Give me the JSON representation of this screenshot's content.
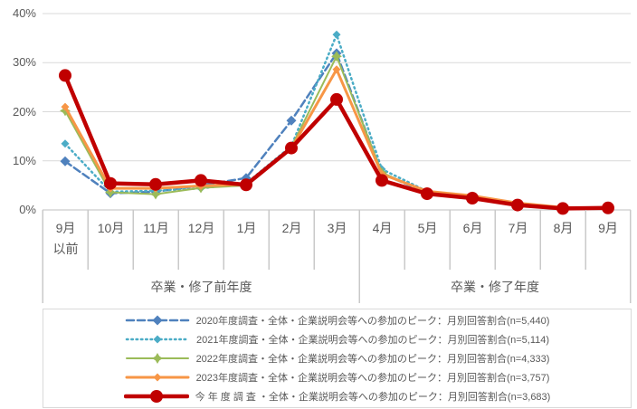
{
  "chart_data": {
    "type": "line",
    "title": "",
    "categories": [
      "9月|以前",
      "10月",
      "11月",
      "12月",
      "1月",
      "2月",
      "3月",
      "4月",
      "5月",
      "6月",
      "7月",
      "8月",
      "9月"
    ],
    "x_group_labels": [
      {
        "label": "卒業・修了前年度",
        "span": 7
      },
      {
        "label": "卒業・修了年度",
        "span": 6
      }
    ],
    "ylabel": "",
    "xlabel": "",
    "ylim": [
      0,
      40
    ],
    "y_ticks": [
      "0%",
      "10%",
      "20%",
      "30%",
      "40%"
    ],
    "grid": "horizontal",
    "legend_position": "bottom",
    "series": [
      {
        "id": "2020",
        "name": "2020年度調査・全体・企業説明会等への参加のピーク：月別回答割合(n=5,440)",
        "n": "5,440",
        "color": "#4F81BD",
        "line_style": "dashed",
        "marker": "diamond",
        "stroke_width": 2.5,
        "marker_size": 5.5,
        "values": [
          9.9,
          3.4,
          3.7,
          5.0,
          6.5,
          18.2,
          31.9,
          7.4,
          3.5,
          2.5,
          1.0,
          0.3,
          0.3
        ]
      },
      {
        "id": "2021",
        "name": "2021年度調査・全体・企業説明会等への参加のピーク：月別回答割合(n=5,114)",
        "n": "5,114",
        "color": "#4BACC6",
        "line_style": "dotted",
        "marker": "diamond",
        "stroke_width": 2.5,
        "marker_size": 4.5,
        "values": [
          13.5,
          3.7,
          3.9,
          4.4,
          5.4,
          13.0,
          35.7,
          8.3,
          3.8,
          2.8,
          1.2,
          0.4,
          0.3
        ]
      },
      {
        "id": "2022",
        "name": "2022年度調査・全体・企業説明会等への参加のピーク：月別回答割合(n=4,333)",
        "n": "4,333",
        "color": "#9BBB59",
        "line_style": "solid",
        "marker": "star4",
        "stroke_width": 2,
        "marker_size": 5,
        "values": [
          20.2,
          3.6,
          3.2,
          4.5,
          5.0,
          12.8,
          31.3,
          7.6,
          3.6,
          2.7,
          1.2,
          0.4,
          0.3
        ]
      },
      {
        "id": "2023",
        "name": "2023年度調査・全体・企業説明会等への参加のピーク：月別回答割合(n=3,757)",
        "n": "3,757",
        "color": "#F79646",
        "line_style": "solid",
        "marker": "diamond",
        "stroke_width": 3,
        "marker_size": 4.5,
        "values": [
          21.0,
          4.4,
          4.4,
          4.9,
          5.2,
          12.5,
          28.6,
          7.3,
          3.8,
          2.9,
          1.4,
          0.5,
          0.4
        ]
      },
      {
        "id": "current",
        "name": "今 年 度 調 査 ・全体・企業説明会等への参加のピーク：月別回答割合(n=3,683)",
        "n": "3,683",
        "color": "#C00000",
        "line_style": "solid",
        "marker": "circle",
        "stroke_width": 4.5,
        "marker_size": 7,
        "values": [
          27.4,
          5.4,
          5.2,
          6.0,
          5.1,
          12.6,
          22.5,
          6.0,
          3.3,
          2.4,
          1.0,
          0.3,
          0.4
        ]
      }
    ]
  },
  "styles": {
    "grid_color": "#D9D9D9",
    "axis_line_color": "#BFBFBF",
    "cell_border_color": "#C9C9C9",
    "text_color": "#595959",
    "background": "#FFFFFF"
  }
}
